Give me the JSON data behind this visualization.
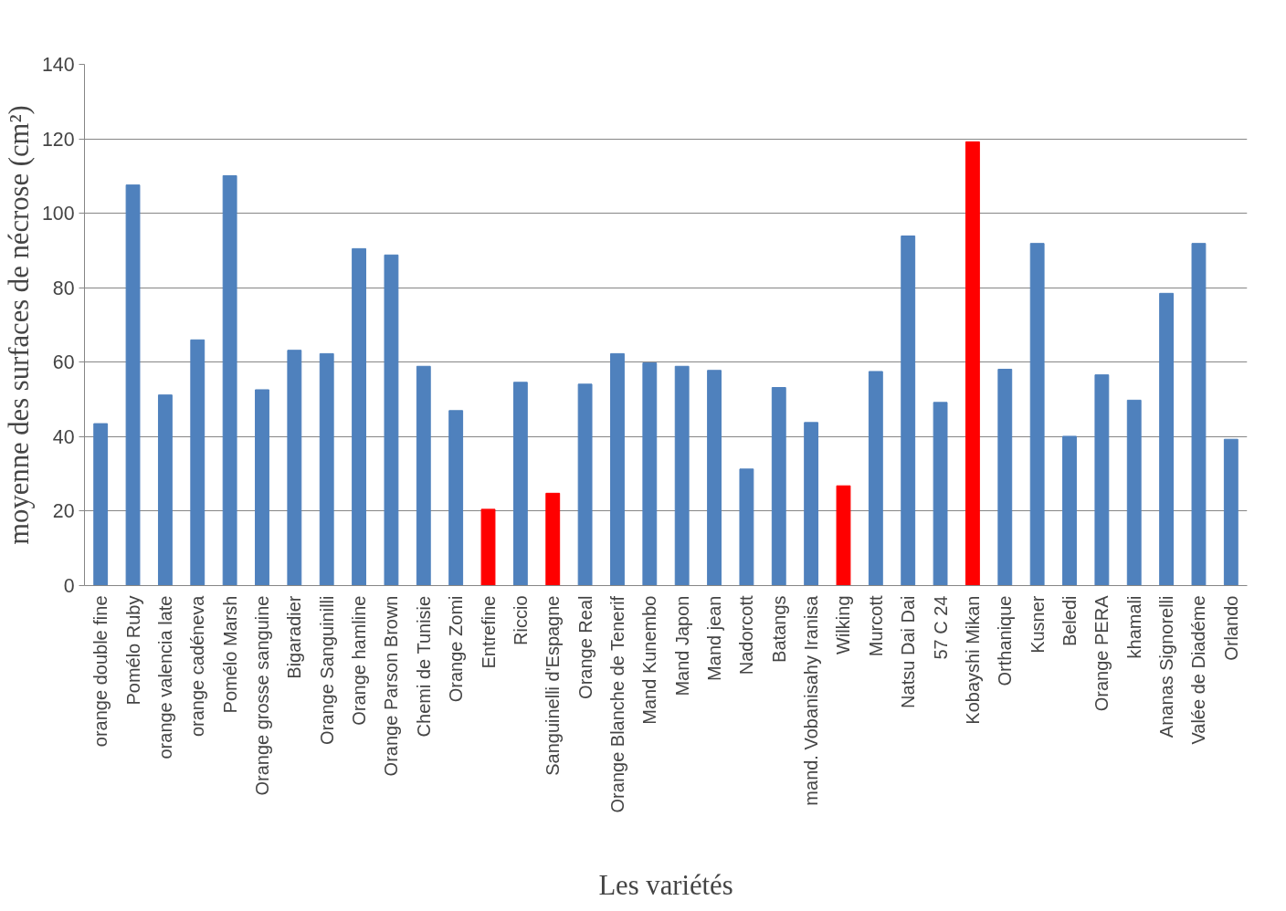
{
  "chart_data": {
    "type": "bar",
    "xlabel": "Les variétés",
    "ylabel": "moyenne des surfaces de nécrose (cm²)",
    "categories": [
      "orange double fine",
      "Pomélo Ruby",
      "orange valencia late",
      "orange cadéneva",
      "Pomélo Marsh",
      "Orange grosse sanguine",
      "Bigaradier",
      "Orange Sanguinilli",
      "Orange hamline",
      "Orange Parson Brown",
      "Chemi de Tunisie",
      "Orange Zomi",
      "Entrefine",
      "Riccio",
      "Sanguinelli d'Espagne",
      "Orange Real",
      "Orange Blanche de Tenerif",
      "Mand Kunembo",
      "Mand Japon",
      "Mand jean",
      "Nadorcott",
      "Batangs",
      "mand. Vobanisahy Iranisa",
      "Wilking",
      "Murcott",
      "Natsu Dai Dai",
      "57 C 24",
      "Kobayshi Mikan",
      "Orthanique",
      "Kusner",
      "Beledi",
      "Orange PERA",
      "khamali",
      "Ananas Signorelli",
      "Valée de Diadéme",
      "Orlando"
    ],
    "values": [
      43.5,
      107.6,
      51.2,
      66,
      110.1,
      52.6,
      63.2,
      62.3,
      90.5,
      88.8,
      58.9,
      47,
      20.5,
      54.6,
      24.8,
      54.1,
      62.3,
      59.8,
      58.9,
      57.8,
      31.3,
      53.2,
      43.8,
      26.8,
      57.5,
      93.9,
      49.2,
      119.2,
      58.1,
      91.9,
      40.1,
      56.6,
      49.8,
      78.5,
      91.9,
      39.3
    ],
    "colors": [
      "#4f81bd",
      "#4f81bd",
      "#4f81bd",
      "#4f81bd",
      "#4f81bd",
      "#4f81bd",
      "#4f81bd",
      "#4f81bd",
      "#4f81bd",
      "#4f81bd",
      "#4f81bd",
      "#4f81bd",
      "#ff0000",
      "#4f81bd",
      "#ff0000",
      "#4f81bd",
      "#4f81bd",
      "#4f81bd",
      "#4f81bd",
      "#4f81bd",
      "#4f81bd",
      "#4f81bd",
      "#4f81bd",
      "#ff0000",
      "#4f81bd",
      "#4f81bd",
      "#4f81bd",
      "#ff0000",
      "#4f81bd",
      "#4f81bd",
      "#4f81bd",
      "#4f81bd",
      "#4f81bd",
      "#4f81bd",
      "#4f81bd",
      "#4f81bd"
    ],
    "ylim": [
      0,
      140
    ],
    "yticks": [
      0,
      20,
      40,
      60,
      80,
      100,
      120,
      140
    ],
    "grid": "y"
  }
}
